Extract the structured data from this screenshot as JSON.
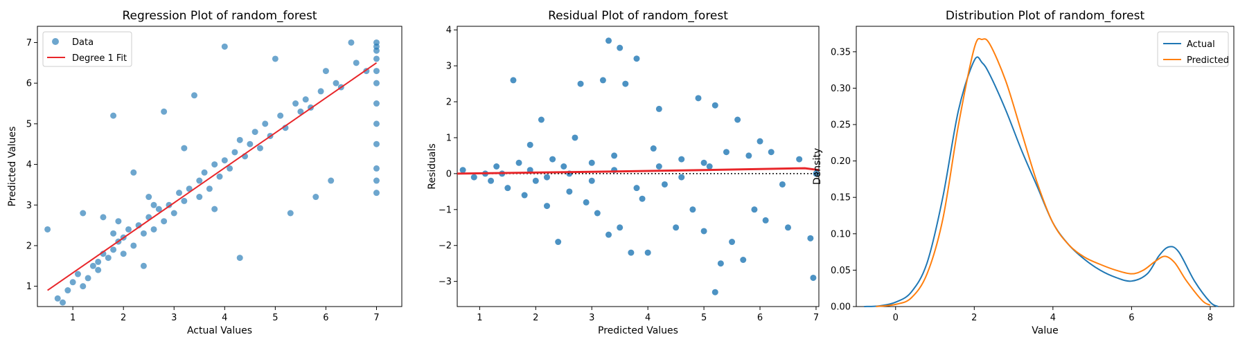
{
  "colors": {
    "data_blue": "#1f77b4",
    "fit_red": "#e8262a",
    "predicted_orange": "#ff7f0e",
    "axis": "#000000"
  },
  "chart_data": [
    {
      "type": "scatter",
      "title": "Regression Plot of random_forest",
      "xlabel": "Actual Values",
      "ylabel": "Predicted Values",
      "xlim": [
        0.3,
        7.5
      ],
      "ylim": [
        0.5,
        7.4
      ],
      "xticks": [
        1,
        2,
        3,
        4,
        5,
        6,
        7
      ],
      "yticks": [
        1,
        2,
        3,
        4,
        5,
        6,
        7
      ],
      "legend": [
        "Data",
        "Degree 1 Fit"
      ],
      "legend_position": "top-left",
      "points": [
        [
          0.5,
          2.4
        ],
        [
          0.7,
          0.7
        ],
        [
          0.8,
          0.6
        ],
        [
          0.9,
          0.9
        ],
        [
          1.0,
          1.1
        ],
        [
          1.1,
          1.3
        ],
        [
          1.2,
          1.0
        ],
        [
          1.3,
          1.2
        ],
        [
          1.4,
          1.5
        ],
        [
          1.5,
          1.6
        ],
        [
          1.5,
          1.4
        ],
        [
          1.6,
          1.8
        ],
        [
          1.7,
          1.7
        ],
        [
          1.8,
          1.9
        ],
        [
          1.8,
          2.3
        ],
        [
          1.9,
          2.1
        ],
        [
          1.8,
          5.2
        ],
        [
          1.9,
          2.6
        ],
        [
          2.0,
          2.2
        ],
        [
          2.0,
          1.8
        ],
        [
          2.1,
          2.4
        ],
        [
          2.2,
          2.0
        ],
        [
          2.3,
          2.5
        ],
        [
          2.4,
          2.3
        ],
        [
          2.5,
          2.7
        ],
        [
          2.5,
          3.2
        ],
        [
          2.6,
          2.4
        ],
        [
          2.7,
          2.9
        ],
        [
          2.8,
          2.6
        ],
        [
          2.8,
          5.3
        ],
        [
          2.9,
          3.0
        ],
        [
          3.0,
          2.8
        ],
        [
          3.1,
          3.3
        ],
        [
          3.2,
          3.1
        ],
        [
          3.3,
          3.4
        ],
        [
          3.4,
          5.7
        ],
        [
          3.5,
          3.2
        ],
        [
          3.5,
          3.6
        ],
        [
          3.6,
          3.8
        ],
        [
          3.7,
          3.4
        ],
        [
          3.8,
          4.0
        ],
        [
          3.9,
          3.7
        ],
        [
          4.0,
          6.9
        ],
        [
          4.0,
          4.1
        ],
        [
          4.1,
          3.9
        ],
        [
          4.2,
          4.3
        ],
        [
          4.3,
          4.6
        ],
        [
          4.3,
          1.7
        ],
        [
          4.4,
          4.2
        ],
        [
          4.5,
          4.5
        ],
        [
          4.6,
          4.8
        ],
        [
          4.7,
          4.4
        ],
        [
          4.8,
          5.0
        ],
        [
          4.9,
          4.7
        ],
        [
          5.0,
          6.6
        ],
        [
          5.1,
          5.2
        ],
        [
          5.2,
          4.9
        ],
        [
          5.3,
          2.8
        ],
        [
          5.4,
          5.5
        ],
        [
          5.5,
          5.3
        ],
        [
          5.6,
          5.6
        ],
        [
          5.7,
          5.4
        ],
        [
          5.8,
          3.2
        ],
        [
          5.9,
          5.8
        ],
        [
          6.0,
          6.3
        ],
        [
          6.1,
          3.6
        ],
        [
          6.2,
          6.0
        ],
        [
          6.3,
          5.9
        ],
        [
          6.5,
          7.0
        ],
        [
          6.6,
          6.5
        ],
        [
          6.8,
          6.3
        ],
        [
          7.0,
          7.0
        ],
        [
          7.0,
          6.9
        ],
        [
          7.0,
          6.8
        ],
        [
          7.0,
          6.6
        ],
        [
          7.0,
          6.3
        ],
        [
          7.0,
          6.0
        ],
        [
          7.0,
          5.5
        ],
        [
          7.0,
          5.0
        ],
        [
          7.0,
          4.5
        ],
        [
          7.0,
          3.9
        ],
        [
          7.0,
          3.6
        ],
        [
          7.0,
          3.3
        ],
        [
          1.2,
          2.8
        ],
        [
          1.6,
          2.7
        ],
        [
          2.2,
          3.8
        ],
        [
          2.6,
          3.0
        ],
        [
          3.2,
          4.4
        ],
        [
          2.4,
          1.5
        ],
        [
          3.8,
          2.9
        ]
      ],
      "fit_line": [
        [
          0.5,
          0.9
        ],
        [
          7.0,
          6.5
        ]
      ]
    },
    {
      "type": "scatter",
      "title": "Residual Plot of random_forest",
      "xlabel": "Predicted Values",
      "ylabel": "Residuals",
      "xlim": [
        0.6,
        7.05
      ],
      "ylim": [
        -3.7,
        4.1
      ],
      "xticks": [
        1,
        2,
        3,
        4,
        5,
        6,
        7
      ],
      "yticks": [
        -3,
        -2,
        -1,
        0,
        1,
        2,
        3,
        4
      ],
      "zero_line": true,
      "points": [
        [
          0.7,
          0.1
        ],
        [
          0.9,
          -0.1
        ],
        [
          1.1,
          0.0
        ],
        [
          1.2,
          -0.2
        ],
        [
          1.3,
          0.2
        ],
        [
          1.4,
          0.0
        ],
        [
          1.6,
          2.6
        ],
        [
          1.5,
          -0.4
        ],
        [
          1.7,
          0.3
        ],
        [
          1.8,
          -0.6
        ],
        [
          1.9,
          0.8
        ],
        [
          2.0,
          -0.2
        ],
        [
          2.1,
          1.5
        ],
        [
          2.2,
          -0.9
        ],
        [
          2.3,
          0.4
        ],
        [
          2.4,
          -1.9
        ],
        [
          2.5,
          0.2
        ],
        [
          2.6,
          -0.5
        ],
        [
          2.7,
          1.0
        ],
        [
          2.8,
          2.5
        ],
        [
          2.9,
          -0.8
        ],
        [
          3.0,
          0.3
        ],
        [
          3.1,
          -1.1
        ],
        [
          3.2,
          2.6
        ],
        [
          3.3,
          3.7
        ],
        [
          3.3,
          -1.7
        ],
        [
          3.4,
          0.5
        ],
        [
          3.5,
          3.5
        ],
        [
          3.5,
          -1.5
        ],
        [
          3.6,
          2.5
        ],
        [
          3.7,
          -2.2
        ],
        [
          3.8,
          3.2
        ],
        [
          3.9,
          -0.7
        ],
        [
          4.0,
          -2.2
        ],
        [
          4.1,
          0.7
        ],
        [
          4.2,
          1.8
        ],
        [
          4.3,
          -0.3
        ],
        [
          4.5,
          -1.5
        ],
        [
          4.6,
          0.4
        ],
        [
          4.8,
          -1.0
        ],
        [
          4.9,
          2.1
        ],
        [
          5.0,
          -1.6
        ],
        [
          5.1,
          0.2
        ],
        [
          5.2,
          1.9
        ],
        [
          5.2,
          -3.3
        ],
        [
          5.3,
          -2.5
        ],
        [
          5.4,
          0.6
        ],
        [
          5.5,
          -1.9
        ],
        [
          5.6,
          1.5
        ],
        [
          5.7,
          -2.4
        ],
        [
          5.8,
          0.5
        ],
        [
          5.9,
          -1.0
        ],
        [
          6.0,
          0.9
        ],
        [
          6.1,
          -1.3
        ],
        [
          6.2,
          0.6
        ],
        [
          6.4,
          -0.3
        ],
        [
          6.5,
          -1.5
        ],
        [
          6.7,
          0.4
        ],
        [
          6.9,
          -1.8
        ],
        [
          6.95,
          -2.9
        ],
        [
          7.0,
          0.0
        ],
        [
          1.9,
          0.1
        ],
        [
          2.2,
          -0.1
        ],
        [
          2.6,
          0.0
        ],
        [
          3.0,
          -0.2
        ],
        [
          3.4,
          0.1
        ],
        [
          3.8,
          -0.4
        ],
        [
          4.2,
          0.2
        ],
        [
          4.6,
          -0.1
        ],
        [
          5.0,
          0.3
        ]
      ],
      "fit_line": [
        [
          0.6,
          0.0
        ],
        [
          3.0,
          0.05
        ],
        [
          5.0,
          0.1
        ],
        [
          6.8,
          0.15
        ],
        [
          7.05,
          0.1
        ]
      ]
    },
    {
      "type": "line",
      "title": "Distribution Plot of random_forest",
      "xlabel": "Value",
      "ylabel": "Density",
      "xlim": [
        -1.0,
        8.6
      ],
      "ylim": [
        0.0,
        0.385
      ],
      "xticks": [
        0,
        2,
        4,
        6,
        8
      ],
      "yticks": [
        0.0,
        0.05,
        0.1,
        0.15,
        0.2,
        0.25,
        0.3,
        0.35
      ],
      "legend_position": "top-right",
      "series": [
        {
          "name": "Actual",
          "x": [
            -0.8,
            -0.4,
            0.0,
            0.4,
            0.8,
            1.2,
            1.6,
            2.0,
            2.2,
            2.4,
            2.8,
            3.2,
            3.6,
            4.0,
            4.4,
            4.8,
            5.2,
            5.6,
            6.0,
            6.4,
            6.7,
            6.95,
            7.2,
            7.6,
            8.0,
            8.2
          ],
          "y": [
            0.0,
            0.001,
            0.006,
            0.02,
            0.06,
            0.15,
            0.27,
            0.338,
            0.335,
            0.318,
            0.27,
            0.215,
            0.165,
            0.115,
            0.085,
            0.065,
            0.05,
            0.04,
            0.035,
            0.045,
            0.07,
            0.082,
            0.075,
            0.035,
            0.006,
            0.0
          ]
        },
        {
          "name": "Predicted",
          "x": [
            -0.5,
            0.0,
            0.4,
            0.8,
            1.2,
            1.6,
            2.0,
            2.2,
            2.4,
            2.8,
            3.2,
            3.6,
            4.0,
            4.4,
            4.8,
            5.2,
            5.6,
            6.0,
            6.3,
            6.6,
            6.85,
            7.1,
            7.4,
            7.8,
            8.0
          ],
          "y": [
            0.0,
            0.003,
            0.012,
            0.045,
            0.12,
            0.25,
            0.355,
            0.367,
            0.36,
            0.31,
            0.24,
            0.17,
            0.115,
            0.085,
            0.068,
            0.058,
            0.05,
            0.045,
            0.05,
            0.062,
            0.069,
            0.06,
            0.035,
            0.008,
            0.002
          ]
        }
      ]
    }
  ]
}
